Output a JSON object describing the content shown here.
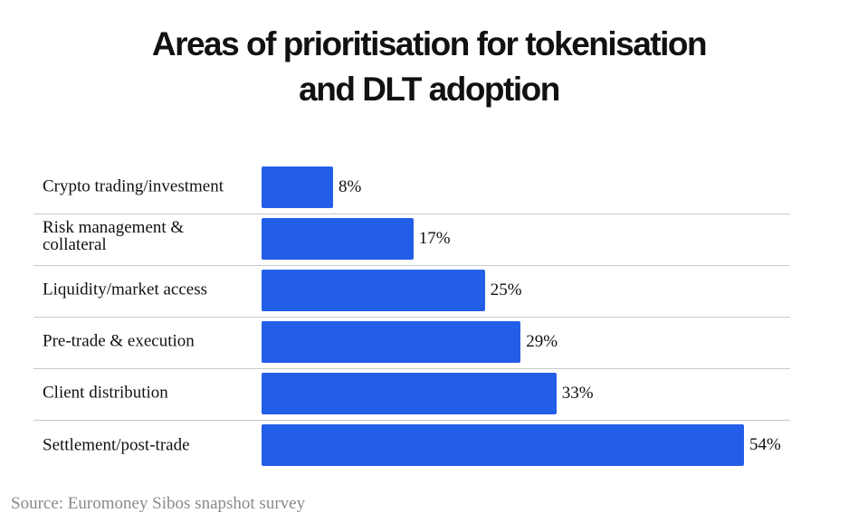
{
  "chart_data": {
    "type": "bar",
    "orientation": "horizontal",
    "title": "Areas of prioritisation for tokenisation and DLT adoption",
    "categories": [
      "Crypto trading/investment",
      "Risk management & collateral",
      "Liquidity/market access",
      "Pre-trade & execution",
      "Client distribution",
      "Settlement/post-trade"
    ],
    "values": [
      8,
      17,
      25,
      29,
      33,
      54
    ],
    "value_labels": [
      "8%",
      "17%",
      "25%",
      "29%",
      "33%",
      "54%"
    ],
    "color": "#235ee8",
    "source": "Source: Euromoney Sibos snapshot survey"
  }
}
